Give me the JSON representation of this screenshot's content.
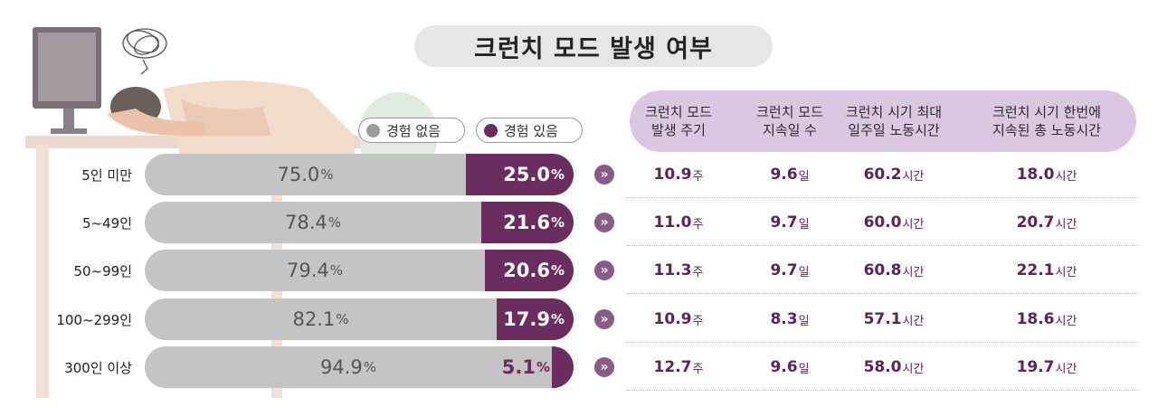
{
  "colors": {
    "none_bar": "#c4c4c4",
    "yes_bar": "#6b2d5f",
    "header_bg": "#dcc7e3",
    "value_text": "#5b2456"
  },
  "chart_data": {
    "type": "bar",
    "orientation": "horizontal",
    "stacked": true,
    "title": "크런치 모드 발생 여부",
    "categories": [
      "5인 미만",
      "5~49인",
      "50~99인",
      "100~299인",
      "300인 이상"
    ],
    "series": [
      {
        "name": "경험 없음",
        "values": [
          75.0,
          78.4,
          79.4,
          82.1,
          94.9
        ],
        "labels": [
          "75.0",
          "78.4",
          "79.4",
          "82.1",
          "94.9"
        ]
      },
      {
        "name": "경험 있음",
        "values": [
          25.0,
          21.6,
          20.6,
          17.9,
          5.1
        ],
        "labels": [
          "25.0",
          "21.6",
          "20.6",
          "17.9",
          "5.1"
        ]
      }
    ],
    "unit": "%",
    "legend_position": "top-right"
  },
  "table": {
    "headers": [
      "크런치 모드\n발생 주기",
      "크런치 모드\n지속일 수",
      "크런치 시기 최대\n일주일 노동시간",
      "크런치 시기 한번에\n지속된 총 노동시간"
    ],
    "units": [
      "주",
      "일",
      "시간",
      "시간"
    ],
    "rows": [
      [
        "10.9",
        "9.6",
        "60.2",
        "18.0"
      ],
      [
        "11.0",
        "9.7",
        "60.0",
        "20.7"
      ],
      [
        "11.3",
        "9.7",
        "60.8",
        "22.1"
      ],
      [
        "10.9",
        "8.3",
        "57.1",
        "18.6"
      ],
      [
        "12.7",
        "9.6",
        "58.0",
        "19.7"
      ]
    ]
  },
  "arrow_glyph": "»"
}
